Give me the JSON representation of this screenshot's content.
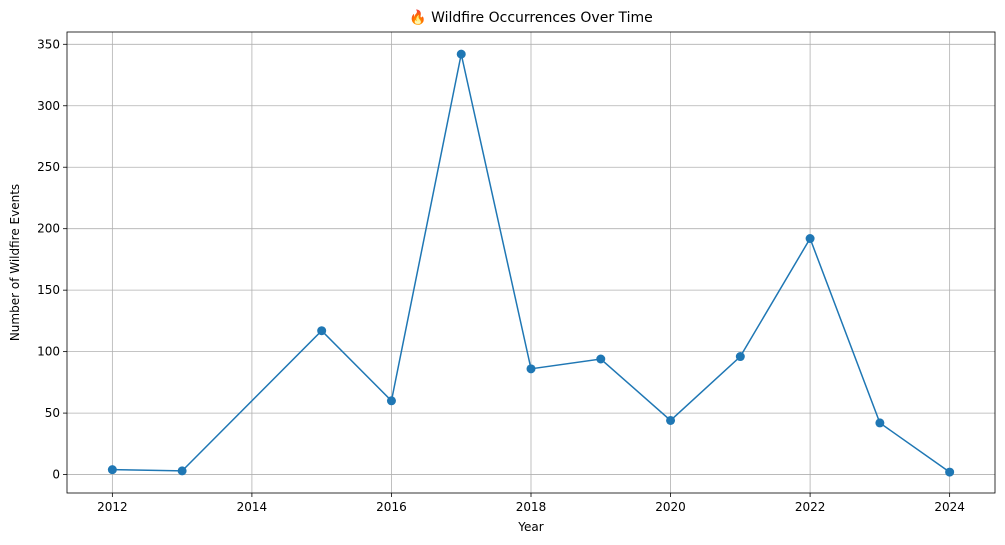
{
  "chart_data": {
    "type": "line",
    "title": "🔥 Wildfire Occurrences Over Time",
    "xlabel": "Year",
    "ylabel": "Number of Wildfire Events",
    "xlim": [
      2011.35,
      2024.65
    ],
    "ylim": [
      -15,
      360
    ],
    "x_ticks": [
      2012,
      2014,
      2016,
      2018,
      2020,
      2022,
      2024
    ],
    "y_ticks": [
      0,
      50,
      100,
      150,
      200,
      250,
      300,
      350
    ],
    "grid": true,
    "marker": "circle",
    "series_color": "#1f77b4",
    "series": [
      {
        "x": [
          2012,
          2013,
          2015,
          2016,
          2017,
          2018,
          2019,
          2020,
          2021,
          2022,
          2023,
          2024
        ],
        "values": [
          4,
          3,
          117,
          60,
          342,
          86,
          94,
          44,
          96,
          192,
          42,
          2
        ]
      }
    ]
  }
}
